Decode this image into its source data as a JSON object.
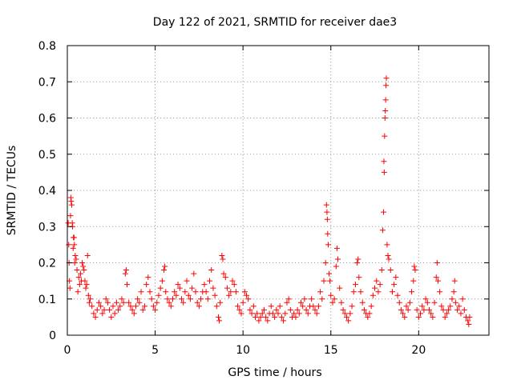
{
  "chart_data": {
    "type": "scatter",
    "title": "Day 122 of 2021, SRMTID for receiver dae3",
    "xlabel": "GPS time / hours",
    "ylabel": "SRMTID / TECUs",
    "xlim": [
      0,
      24
    ],
    "ylim": [
      0,
      0.8
    ],
    "xticks": [
      0,
      5,
      10,
      15,
      20
    ],
    "xtick_labels": [
      "0",
      "5",
      "10",
      "15",
      "20"
    ],
    "yticks": [
      0,
      0.1,
      0.2,
      0.3,
      0.4,
      0.5,
      0.6,
      0.7,
      0.8
    ],
    "ytick_labels": [
      "0",
      "0.1",
      "0.2",
      "0.3",
      "0.4",
      "0.5",
      "0.6",
      "0.7",
      "0.8"
    ],
    "grid": true,
    "marker": "+",
    "color": "#ff0000",
    "series": [
      {
        "name": "SRMTID",
        "points": [
          [
            0.05,
            0.31
          ],
          [
            0.08,
            0.25
          ],
          [
            0.1,
            0.2
          ],
          [
            0.12,
            0.15
          ],
          [
            0.15,
            0.13
          ],
          [
            0.18,
            0.33
          ],
          [
            0.2,
            0.38
          ],
          [
            0.22,
            0.37
          ],
          [
            0.25,
            0.36
          ],
          [
            0.28,
            0.31
          ],
          [
            0.3,
            0.3
          ],
          [
            0.33,
            0.24
          ],
          [
            0.35,
            0.27
          ],
          [
            0.38,
            0.27
          ],
          [
            0.4,
            0.25
          ],
          [
            0.42,
            0.2
          ],
          [
            0.45,
            0.22
          ],
          [
            0.5,
            0.21
          ],
          [
            0.55,
            0.18
          ],
          [
            0.6,
            0.12
          ],
          [
            0.65,
            0.16
          ],
          [
            0.7,
            0.14
          ],
          [
            0.75,
            0.17
          ],
          [
            0.8,
            0.15
          ],
          [
            0.85,
            0.2
          ],
          [
            0.9,
            0.19
          ],
          [
            0.95,
            0.18
          ],
          [
            1.0,
            0.15
          ],
          [
            1.05,
            0.13
          ],
          [
            1.1,
            0.14
          ],
          [
            1.15,
            0.22
          ],
          [
            1.2,
            0.11
          ],
          [
            1.25,
            0.09
          ],
          [
            1.3,
            0.1
          ],
          [
            1.4,
            0.08
          ],
          [
            1.5,
            0.06
          ],
          [
            1.6,
            0.05
          ],
          [
            1.7,
            0.07
          ],
          [
            1.8,
            0.09
          ],
          [
            1.9,
            0.08
          ],
          [
            2.0,
            0.06
          ],
          [
            2.1,
            0.07
          ],
          [
            2.2,
            0.1
          ],
          [
            2.3,
            0.09
          ],
          [
            2.4,
            0.07
          ],
          [
            2.5,
            0.05
          ],
          [
            2.6,
            0.08
          ],
          [
            2.7,
            0.06
          ],
          [
            2.8,
            0.09
          ],
          [
            2.9,
            0.07
          ],
          [
            3.0,
            0.08
          ],
          [
            3.1,
            0.1
          ],
          [
            3.2,
            0.09
          ],
          [
            3.3,
            0.17
          ],
          [
            3.35,
            0.18
          ],
          [
            3.4,
            0.14
          ],
          [
            3.5,
            0.09
          ],
          [
            3.6,
            0.08
          ],
          [
            3.7,
            0.07
          ],
          [
            3.8,
            0.06
          ],
          [
            3.9,
            0.08
          ],
          [
            4.0,
            0.1
          ],
          [
            4.1,
            0.09
          ],
          [
            4.2,
            0.12
          ],
          [
            4.3,
            0.07
          ],
          [
            4.4,
            0.08
          ],
          [
            4.5,
            0.14
          ],
          [
            4.6,
            0.16
          ],
          [
            4.7,
            0.12
          ],
          [
            4.8,
            0.1
          ],
          [
            4.9,
            0.08
          ],
          [
            5.0,
            0.07
          ],
          [
            5.1,
            0.09
          ],
          [
            5.2,
            0.11
          ],
          [
            5.3,
            0.13
          ],
          [
            5.4,
            0.15
          ],
          [
            5.5,
            0.18
          ],
          [
            5.55,
            0.19
          ],
          [
            5.6,
            0.12
          ],
          [
            5.7,
            0.1
          ],
          [
            5.8,
            0.09
          ],
          [
            5.9,
            0.08
          ],
          [
            6.0,
            0.1
          ],
          [
            6.1,
            0.12
          ],
          [
            6.2,
            0.11
          ],
          [
            6.3,
            0.14
          ],
          [
            6.4,
            0.13
          ],
          [
            6.5,
            0.1
          ],
          [
            6.6,
            0.09
          ],
          [
            6.7,
            0.12
          ],
          [
            6.8,
            0.15
          ],
          [
            6.9,
            0.11
          ],
          [
            7.0,
            0.1
          ],
          [
            7.1,
            0.13
          ],
          [
            7.2,
            0.17
          ],
          [
            7.3,
            0.12
          ],
          [
            7.4,
            0.09
          ],
          [
            7.5,
            0.08
          ],
          [
            7.6,
            0.1
          ],
          [
            7.7,
            0.12
          ],
          [
            7.8,
            0.14
          ],
          [
            7.9,
            0.12
          ],
          [
            8.0,
            0.1
          ],
          [
            8.1,
            0.15
          ],
          [
            8.2,
            0.18
          ],
          [
            8.3,
            0.13
          ],
          [
            8.4,
            0.11
          ],
          [
            8.5,
            0.08
          ],
          [
            8.6,
            0.05
          ],
          [
            8.65,
            0.04
          ],
          [
            8.7,
            0.09
          ],
          [
            8.8,
            0.22
          ],
          [
            8.85,
            0.21
          ],
          [
            8.9,
            0.17
          ],
          [
            9.0,
            0.16
          ],
          [
            9.1,
            0.13
          ],
          [
            9.2,
            0.11
          ],
          [
            9.3,
            0.12
          ],
          [
            9.4,
            0.15
          ],
          [
            9.5,
            0.14
          ],
          [
            9.6,
            0.12
          ],
          [
            9.7,
            0.08
          ],
          [
            9.8,
            0.07
          ],
          [
            9.9,
            0.06
          ],
          [
            10.0,
            0.09
          ],
          [
            10.1,
            0.12
          ],
          [
            10.2,
            0.11
          ],
          [
            10.3,
            0.1
          ],
          [
            10.4,
            0.07
          ],
          [
            10.5,
            0.06
          ],
          [
            10.6,
            0.08
          ],
          [
            10.7,
            0.05
          ],
          [
            10.8,
            0.06
          ],
          [
            10.9,
            0.04
          ],
          [
            11.0,
            0.05
          ],
          [
            11.1,
            0.06
          ],
          [
            11.2,
            0.07
          ],
          [
            11.3,
            0.05
          ],
          [
            11.4,
            0.04
          ],
          [
            11.5,
            0.06
          ],
          [
            11.6,
            0.08
          ],
          [
            11.7,
            0.06
          ],
          [
            11.8,
            0.05
          ],
          [
            11.9,
            0.07
          ],
          [
            12.0,
            0.06
          ],
          [
            12.1,
            0.08
          ],
          [
            12.2,
            0.05
          ],
          [
            12.3,
            0.04
          ],
          [
            12.4,
            0.06
          ],
          [
            12.5,
            0.09
          ],
          [
            12.6,
            0.1
          ],
          [
            12.7,
            0.07
          ],
          [
            12.8,
            0.05
          ],
          [
            12.9,
            0.06
          ],
          [
            13.0,
            0.05
          ],
          [
            13.1,
            0.07
          ],
          [
            13.2,
            0.06
          ],
          [
            13.3,
            0.09
          ],
          [
            13.4,
            0.08
          ],
          [
            13.5,
            0.1
          ],
          [
            13.6,
            0.07
          ],
          [
            13.7,
            0.06
          ],
          [
            13.8,
            0.08
          ],
          [
            13.9,
            0.1
          ],
          [
            14.0,
            0.08
          ],
          [
            14.1,
            0.07
          ],
          [
            14.2,
            0.06
          ],
          [
            14.3,
            0.08
          ],
          [
            14.4,
            0.12
          ],
          [
            14.5,
            0.1
          ],
          [
            14.6,
            0.15
          ],
          [
            14.7,
            0.2
          ],
          [
            14.75,
            0.36
          ],
          [
            14.78,
            0.34
          ],
          [
            14.8,
            0.32
          ],
          [
            14.82,
            0.28
          ],
          [
            14.85,
            0.25
          ],
          [
            14.9,
            0.17
          ],
          [
            14.95,
            0.15
          ],
          [
            15.0,
            0.11
          ],
          [
            15.1,
            0.09
          ],
          [
            15.2,
            0.1
          ],
          [
            15.3,
            0.19
          ],
          [
            15.35,
            0.24
          ],
          [
            15.4,
            0.21
          ],
          [
            15.5,
            0.13
          ],
          [
            15.6,
            0.09
          ],
          [
            15.7,
            0.07
          ],
          [
            15.8,
            0.06
          ],
          [
            15.9,
            0.05
          ],
          [
            16.0,
            0.04
          ],
          [
            16.1,
            0.06
          ],
          [
            16.2,
            0.08
          ],
          [
            16.3,
            0.12
          ],
          [
            16.4,
            0.14
          ],
          [
            16.5,
            0.2
          ],
          [
            16.55,
            0.21
          ],
          [
            16.6,
            0.16
          ],
          [
            16.7,
            0.12
          ],
          [
            16.8,
            0.09
          ],
          [
            16.9,
            0.07
          ],
          [
            17.0,
            0.06
          ],
          [
            17.1,
            0.05
          ],
          [
            17.2,
            0.06
          ],
          [
            17.3,
            0.08
          ],
          [
            17.4,
            0.11
          ],
          [
            17.5,
            0.13
          ],
          [
            17.6,
            0.15
          ],
          [
            17.7,
            0.12
          ],
          [
            17.8,
            0.14
          ],
          [
            17.9,
            0.18
          ],
          [
            17.95,
            0.29
          ],
          [
            18.0,
            0.34
          ],
          [
            18.02,
            0.48
          ],
          [
            18.04,
            0.45
          ],
          [
            18.06,
            0.55
          ],
          [
            18.08,
            0.6
          ],
          [
            18.1,
            0.62
          ],
          [
            18.12,
            0.65
          ],
          [
            18.14,
            0.69
          ],
          [
            18.16,
            0.71
          ],
          [
            18.2,
            0.25
          ],
          [
            18.25,
            0.22
          ],
          [
            18.3,
            0.21
          ],
          [
            18.4,
            0.18
          ],
          [
            18.5,
            0.12
          ],
          [
            18.6,
            0.14
          ],
          [
            18.7,
            0.16
          ],
          [
            18.8,
            0.11
          ],
          [
            18.9,
            0.09
          ],
          [
            19.0,
            0.07
          ],
          [
            19.1,
            0.06
          ],
          [
            19.2,
            0.05
          ],
          [
            19.3,
            0.08
          ],
          [
            19.4,
            0.07
          ],
          [
            19.5,
            0.09
          ],
          [
            19.6,
            0.12
          ],
          [
            19.7,
            0.15
          ],
          [
            19.75,
            0.19
          ],
          [
            19.8,
            0.18
          ],
          [
            19.9,
            0.07
          ],
          [
            20.0,
            0.05
          ],
          [
            20.1,
            0.06
          ],
          [
            20.2,
            0.08
          ],
          [
            20.3,
            0.07
          ],
          [
            20.4,
            0.1
          ],
          [
            20.5,
            0.09
          ],
          [
            20.6,
            0.07
          ],
          [
            20.7,
            0.06
          ],
          [
            20.8,
            0.05
          ],
          [
            20.9,
            0.09
          ],
          [
            21.0,
            0.16
          ],
          [
            21.05,
            0.2
          ],
          [
            21.1,
            0.15
          ],
          [
            21.2,
            0.12
          ],
          [
            21.3,
            0.08
          ],
          [
            21.4,
            0.07
          ],
          [
            21.5,
            0.05
          ],
          [
            21.6,
            0.06
          ],
          [
            21.7,
            0.07
          ],
          [
            21.8,
            0.08
          ],
          [
            21.9,
            0.1
          ],
          [
            22.0,
            0.12
          ],
          [
            22.05,
            0.15
          ],
          [
            22.1,
            0.09
          ],
          [
            22.2,
            0.07
          ],
          [
            22.3,
            0.08
          ],
          [
            22.4,
            0.06
          ],
          [
            22.5,
            0.1
          ],
          [
            22.6,
            0.07
          ],
          [
            22.7,
            0.05
          ],
          [
            22.8,
            0.04
          ],
          [
            22.85,
            0.03
          ],
          [
            22.9,
            0.05
          ]
        ]
      }
    ]
  }
}
